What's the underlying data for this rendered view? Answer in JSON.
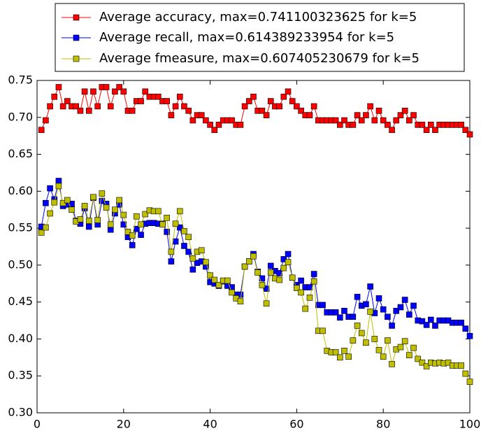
{
  "chart_data": {
    "type": "line",
    "x": [
      1,
      2,
      3,
      4,
      5,
      6,
      7,
      8,
      9,
      10,
      11,
      12,
      13,
      14,
      15,
      16,
      17,
      18,
      19,
      20,
      21,
      22,
      23,
      24,
      25,
      26,
      27,
      28,
      29,
      30,
      31,
      32,
      33,
      34,
      35,
      36,
      37,
      38,
      39,
      40,
      41,
      42,
      43,
      44,
      45,
      46,
      47,
      48,
      49,
      50,
      51,
      52,
      53,
      54,
      55,
      56,
      57,
      58,
      59,
      60,
      61,
      62,
      63,
      64,
      65,
      66,
      67,
      68,
      69,
      70,
      71,
      72,
      73,
      74,
      75,
      76,
      77,
      78,
      79,
      80,
      81,
      82,
      83,
      84,
      85,
      86,
      87,
      88,
      89,
      90,
      91,
      92,
      93,
      94,
      95,
      96,
      97,
      98,
      99,
      100
    ],
    "series": [
      {
        "name": "Average accuracy, max=0.741100323625 for k=5",
        "color": "#ff0000",
        "values": [
          0.683,
          0.696,
          0.715,
          0.728,
          0.741,
          0.715,
          0.722,
          0.715,
          0.715,
          0.709,
          0.735,
          0.709,
          0.735,
          0.715,
          0.741,
          0.741,
          0.715,
          0.735,
          0.741,
          0.735,
          0.709,
          0.709,
          0.722,
          0.722,
          0.735,
          0.728,
          0.728,
          0.728,
          0.722,
          0.722,
          0.703,
          0.715,
          0.728,
          0.715,
          0.709,
          0.696,
          0.703,
          0.703,
          0.696,
          0.69,
          0.683,
          0.69,
          0.696,
          0.696,
          0.696,
          0.69,
          0.69,
          0.715,
          0.722,
          0.728,
          0.709,
          0.709,
          0.703,
          0.722,
          0.715,
          0.715,
          0.728,
          0.735,
          0.722,
          0.715,
          0.709,
          0.703,
          0.703,
          0.715,
          0.696,
          0.696,
          0.696,
          0.696,
          0.696,
          0.69,
          0.696,
          0.69,
          0.69,
          0.703,
          0.696,
          0.703,
          0.715,
          0.696,
          0.709,
          0.696,
          0.69,
          0.683,
          0.696,
          0.703,
          0.709,
          0.696,
          0.703,
          0.69,
          0.69,
          0.683,
          0.69,
          0.683,
          0.69,
          0.69,
          0.69,
          0.69,
          0.69,
          0.69,
          0.683,
          0.677
        ]
      },
      {
        "name": "Average recall, max=0.614389233954 for k=5",
        "color": "#0000ff",
        "values": [
          0.552,
          0.584,
          0.604,
          0.589,
          0.614,
          0.58,
          0.582,
          0.583,
          0.56,
          0.556,
          0.577,
          0.552,
          0.591,
          0.555,
          0.587,
          0.583,
          0.548,
          0.57,
          0.582,
          0.555,
          0.538,
          0.527,
          0.549,
          0.541,
          0.556,
          0.557,
          0.557,
          0.556,
          0.556,
          0.545,
          0.505,
          0.532,
          0.551,
          0.526,
          0.518,
          0.494,
          0.503,
          0.505,
          0.498,
          0.477,
          0.475,
          0.472,
          0.478,
          0.472,
          0.47,
          0.46,
          0.46,
          0.498,
          0.505,
          0.515,
          0.491,
          0.482,
          0.468,
          0.499,
          0.492,
          0.489,
          0.508,
          0.515,
          0.483,
          0.473,
          0.479,
          0.47,
          0.47,
          0.488,
          0.446,
          0.446,
          0.436,
          0.436,
          0.436,
          0.429,
          0.438,
          0.43,
          0.43,
          0.457,
          0.445,
          0.447,
          0.471,
          0.435,
          0.455,
          0.44,
          0.43,
          0.418,
          0.438,
          0.443,
          0.453,
          0.433,
          0.445,
          0.425,
          0.424,
          0.419,
          0.426,
          0.418,
          0.425,
          0.425,
          0.425,
          0.422,
          0.422,
          0.422,
          0.414,
          0.404
        ]
      },
      {
        "name": "Average fmeasure, max=0.607405230679 for k=5",
        "color": "#bfbf00",
        "values": [
          0.544,
          0.551,
          0.57,
          0.585,
          0.607,
          0.584,
          0.588,
          0.575,
          0.559,
          0.562,
          0.58,
          0.56,
          0.592,
          0.561,
          0.597,
          0.578,
          0.555,
          0.575,
          0.588,
          0.568,
          0.545,
          0.54,
          0.566,
          0.555,
          0.569,
          0.574,
          0.573,
          0.573,
          0.555,
          0.564,
          0.518,
          0.556,
          0.573,
          0.546,
          0.538,
          0.509,
          0.518,
          0.52,
          0.504,
          0.486,
          0.48,
          0.473,
          0.479,
          0.479,
          0.463,
          0.455,
          0.451,
          0.498,
          0.505,
          0.512,
          0.49,
          0.473,
          0.448,
          0.49,
          0.482,
          0.48,
          0.496,
          0.504,
          0.483,
          0.469,
          0.463,
          0.441,
          0.456,
          0.478,
          0.411,
          0.411,
          0.384,
          0.382,
          0.382,
          0.375,
          0.384,
          0.376,
          0.398,
          0.418,
          0.408,
          0.395,
          0.437,
          0.4,
          0.385,
          0.376,
          0.398,
          0.366,
          0.386,
          0.389,
          0.397,
          0.378,
          0.388,
          0.373,
          0.368,
          0.363,
          0.368,
          0.367,
          0.368,
          0.367,
          0.368,
          0.364,
          0.364,
          0.364,
          0.353,
          0.342
        ]
      }
    ],
    "xlim": [
      0,
      100
    ],
    "xticks": [
      0,
      20,
      40,
      60,
      80,
      100
    ],
    "ylim": [
      0.3,
      0.75
    ],
    "yticks": [
      {
        "value": 0.3,
        "label": "0.30"
      },
      0.35,
      {
        "value": 0.4,
        "label": "0.40"
      },
      0.45,
      {
        "value": 0.5,
        "label": "0.50"
      },
      0.55,
      {
        "value": 0.6,
        "label": "0.60"
      },
      0.65,
      {
        "value": 0.7,
        "label": "0.70"
      },
      0.75
    ],
    "grid": false
  }
}
